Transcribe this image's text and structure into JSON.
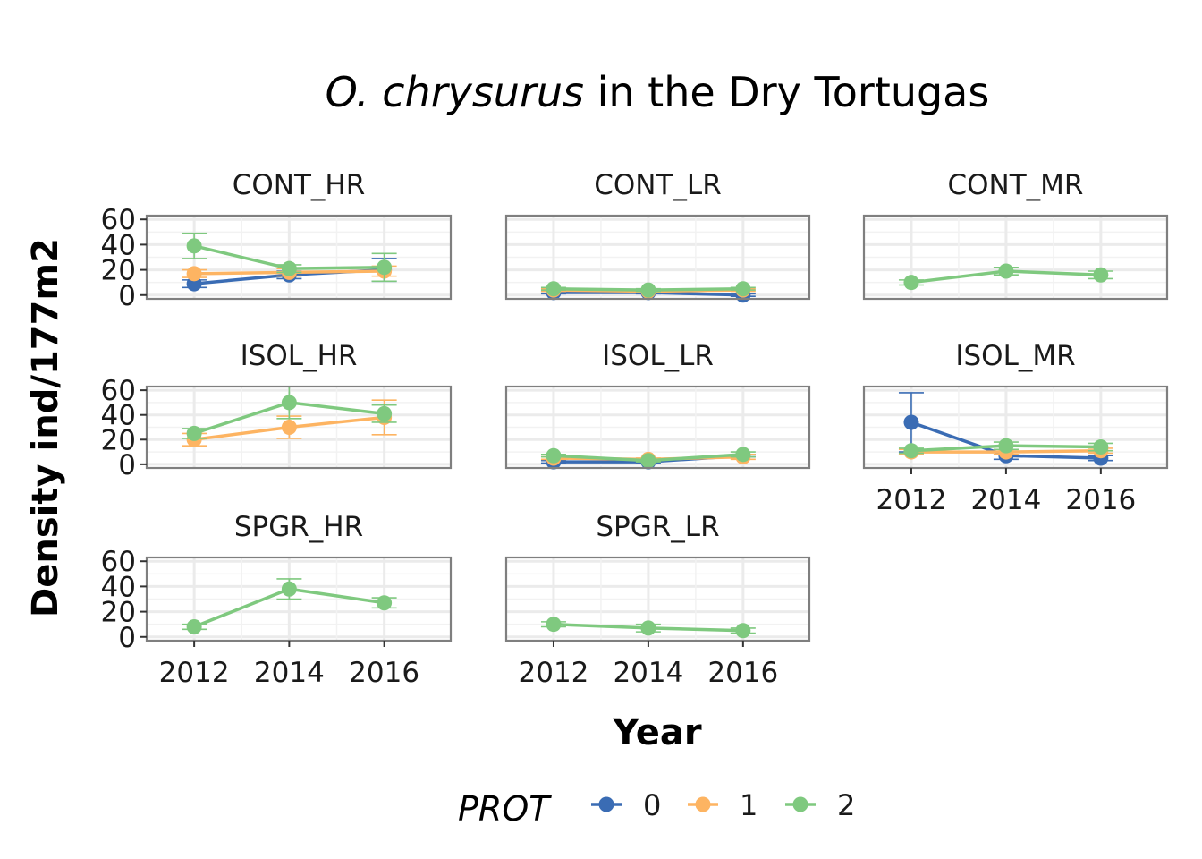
{
  "chart_data": {
    "type": "line",
    "title_italic": "O. chrysurus",
    "title_rest": " in the Dry Tortugas",
    "xlabel": "Year",
    "ylabel": "Density ind/177m2",
    "x": [
      2012,
      2014,
      2016
    ],
    "x_tick_labels": [
      "2012",
      "2014",
      "2016"
    ],
    "ylim": [
      0,
      60
    ],
    "y_ticks": [
      0,
      20,
      40,
      60
    ],
    "y_tick_labels": [
      "0",
      "20",
      "40",
      "60"
    ],
    "legend": {
      "title": "PROT",
      "position": "bottom",
      "entries": [
        {
          "key": "0",
          "label": "0",
          "color": "#3a6cb4"
        },
        {
          "key": "1",
          "label": "1",
          "color": "#fdb462"
        },
        {
          "key": "2",
          "label": "2",
          "color": "#7fc97f"
        }
      ]
    },
    "panels": [
      {
        "name": "CONT_HR",
        "series": [
          {
            "prot": "0",
            "values": [
              9,
              16,
              20
            ],
            "err": [
              3,
              3,
              9
            ]
          },
          {
            "prot": "1",
            "values": [
              17,
              18,
              19
            ],
            "err": [
              3,
              3,
              4
            ]
          },
          {
            "prot": "2",
            "values": [
              39,
              21,
              22
            ],
            "err": [
              10,
              3,
              11
            ]
          }
        ]
      },
      {
        "name": "CONT_LR",
        "series": [
          {
            "prot": "0",
            "values": [
              2,
              2,
              0
            ],
            "err": [
              1,
              1,
              1
            ]
          },
          {
            "prot": "1",
            "values": [
              4,
              3,
              4
            ],
            "err": [
              1,
              1,
              1
            ]
          },
          {
            "prot": "2",
            "values": [
              5,
              4,
              5
            ],
            "err": [
              1,
              1,
              1
            ]
          }
        ]
      },
      {
        "name": "CONT_MR",
        "series": [
          {
            "prot": "2",
            "values": [
              10,
              19,
              16
            ],
            "err": [
              2,
              3,
              3
            ]
          }
        ]
      },
      {
        "name": "ISOL_HR",
        "series": [
          {
            "prot": "1",
            "values": [
              20,
              30,
              38
            ],
            "err": [
              5,
              9,
              14
            ]
          },
          {
            "prot": "2",
            "values": [
              25,
              50,
              41
            ],
            "err": [
              4,
              13,
              7
            ]
          }
        ]
      },
      {
        "name": "ISOL_LR",
        "series": [
          {
            "prot": "0",
            "values": [
              2,
              2,
              7
            ],
            "err": [
              1,
              1,
              1
            ]
          },
          {
            "prot": "1",
            "values": [
              5,
              4,
              6
            ],
            "err": [
              1,
              1,
              2
            ]
          },
          {
            "prot": "2",
            "values": [
              7,
              3,
              8
            ],
            "err": [
              1,
              1,
              2
            ]
          }
        ]
      },
      {
        "name": "ISOL_MR",
        "series": [
          {
            "prot": "0",
            "values": [
              34,
              7,
              5
            ],
            "err": [
              24,
              3,
              2
            ]
          },
          {
            "prot": "1",
            "values": [
              10,
              10,
              11
            ],
            "err": [
              2,
              2,
              2
            ]
          },
          {
            "prot": "2",
            "values": [
              11,
              15,
              14
            ],
            "err": [
              2,
              3,
              3
            ]
          }
        ]
      },
      {
        "name": "SPGR_HR",
        "series": [
          {
            "prot": "2",
            "values": [
              8,
              38,
              27
            ],
            "err": [
              2,
              8,
              4
            ]
          }
        ]
      },
      {
        "name": "SPGR_LR",
        "series": [
          {
            "prot": "2",
            "values": [
              10,
              7,
              5
            ],
            "err": [
              2,
              3,
              2
            ]
          }
        ]
      }
    ]
  }
}
